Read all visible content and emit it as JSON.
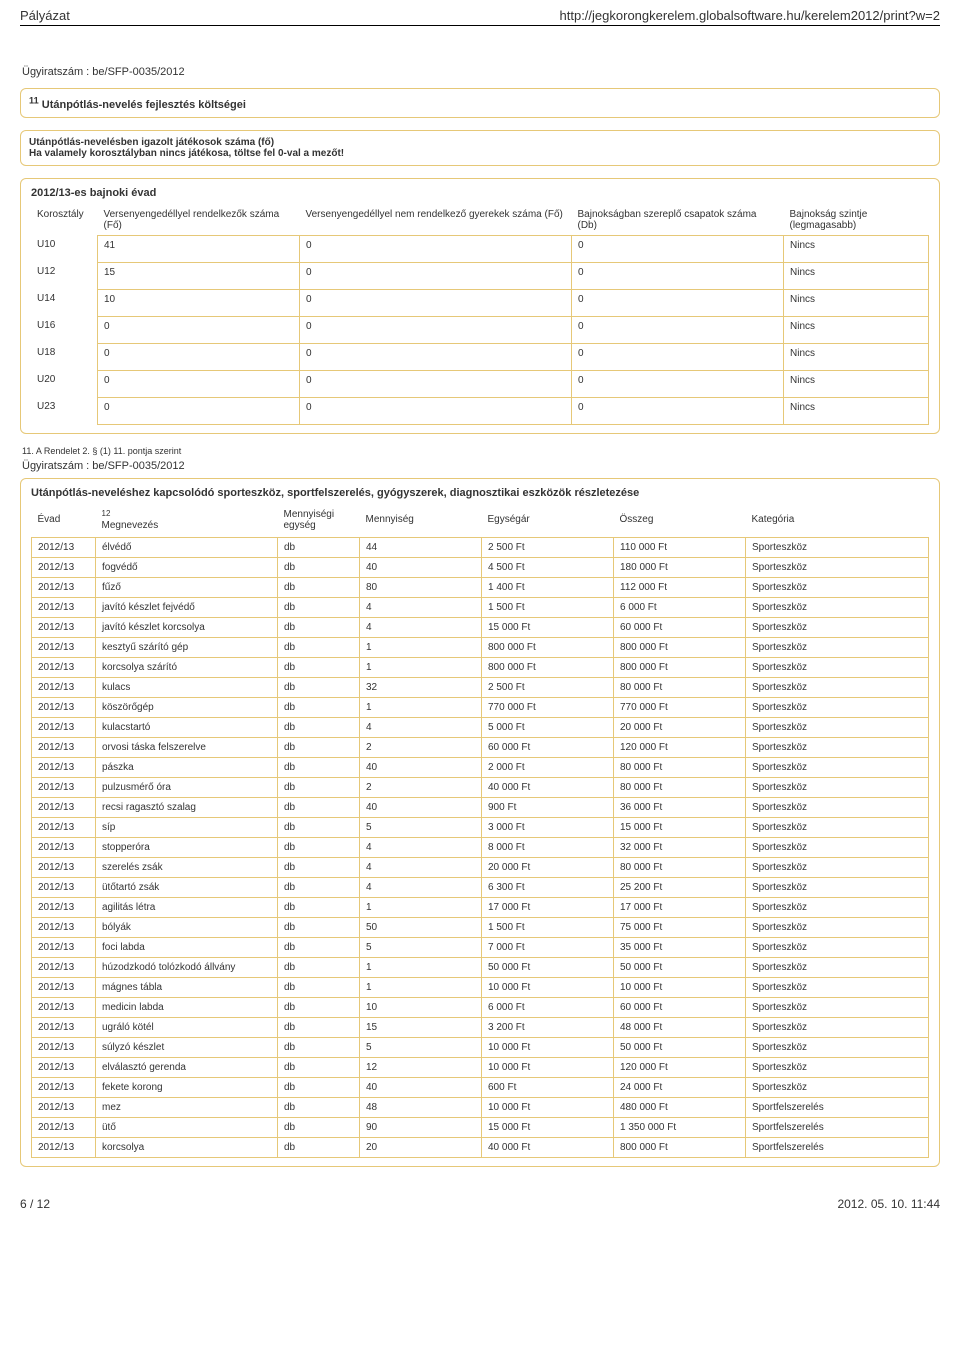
{
  "header": {
    "left": "Pályázat",
    "right": "http://jegkorongkerelem.globalsoftware.hu/kerelem2012/print?w=2"
  },
  "case_number_label": "Ügyiratszám : be/SFP-0035/2012",
  "block1": {
    "sup": "11",
    "title": "Utánpótlás-nevelés fejlesztés költségei"
  },
  "block2": {
    "line1": "Utánpótlás-nevelésben igazolt játékosok száma (fő)",
    "line2": "Ha valamely korosztályban nincs játékosa, töltse fel 0-val a mezőt!"
  },
  "age_table": {
    "title": "2012/13-es bajnoki évad",
    "headers": {
      "c1": "Korosztály",
      "c2": "Versenyengedéllyel rendelkezők száma (Fő)",
      "c3": "Versenyengedéllyel nem rendelkező gyerekek száma (Fő)",
      "c4": "Bajnokságban szereplő csapatok száma (Db)",
      "c5": "Bajnokság szintje (legmagasabb)"
    },
    "rows": [
      {
        "age": "U10",
        "a": "41",
        "b": "0",
        "c": "0",
        "d": "Nincs"
      },
      {
        "age": "U12",
        "a": "15",
        "b": "0",
        "c": "0",
        "d": "Nincs"
      },
      {
        "age": "U14",
        "a": "10",
        "b": "0",
        "c": "0",
        "d": "Nincs"
      },
      {
        "age": "U16",
        "a": "0",
        "b": "0",
        "c": "0",
        "d": "Nincs"
      },
      {
        "age": "U18",
        "a": "0",
        "b": "0",
        "c": "0",
        "d": "Nincs"
      },
      {
        "age": "U20",
        "a": "0",
        "b": "0",
        "c": "0",
        "d": "Nincs"
      },
      {
        "age": "U23",
        "a": "0",
        "b": "0",
        "c": "0",
        "d": "Nincs"
      }
    ]
  },
  "footnote11": "11. A Rendelet 2. § (1) 11. pontja szerint",
  "equip_block": {
    "title": "Utánpótlás-neveléshez kapcsolódó sporteszköz, sportfelszerelés, gyógyszerek, diagnosztikai eszközök részletezése",
    "headers": {
      "evad": "Évad",
      "name_sup": "12",
      "name": "Megnevezés",
      "unit": "Mennyiségi egység",
      "qty": "Mennyiség",
      "price": "Egységár",
      "sum": "Összeg",
      "cat": "Kategória"
    },
    "rows": [
      {
        "e": "2012/13",
        "n": "élvédő",
        "u": "db",
        "q": "44",
        "p": "2 500 Ft",
        "s": "110 000  Ft",
        "c": "Sporteszköz"
      },
      {
        "e": "2012/13",
        "n": "fogvédő",
        "u": "db",
        "q": "40",
        "p": "4 500 Ft",
        "s": "180 000  Ft",
        "c": "Sporteszköz"
      },
      {
        "e": "2012/13",
        "n": "fűző",
        "u": "db",
        "q": "80",
        "p": "1 400 Ft",
        "s": "112 000  Ft",
        "c": "Sporteszköz"
      },
      {
        "e": "2012/13",
        "n": "javító készlet fejvédő",
        "u": "db",
        "q": "4",
        "p": "1 500 Ft",
        "s": "6 000  Ft",
        "c": "Sporteszköz"
      },
      {
        "e": "2012/13",
        "n": "javító készlet korcsolya",
        "u": "db",
        "q": "4",
        "p": "15 000 Ft",
        "s": "60 000  Ft",
        "c": "Sporteszköz"
      },
      {
        "e": "2012/13",
        "n": "kesztyű szárító gép",
        "u": "db",
        "q": "1",
        "p": "800 000 Ft",
        "s": "800 000  Ft",
        "c": "Sporteszköz"
      },
      {
        "e": "2012/13",
        "n": "korcsolya szárító",
        "u": "db",
        "q": "1",
        "p": "800 000 Ft",
        "s": "800 000  Ft",
        "c": "Sporteszköz"
      },
      {
        "e": "2012/13",
        "n": "kulacs",
        "u": "db",
        "q": "32",
        "p": "2 500 Ft",
        "s": "80 000  Ft",
        "c": "Sporteszköz"
      },
      {
        "e": "2012/13",
        "n": "köszörőgép",
        "u": "db",
        "q": "1",
        "p": "770 000 Ft",
        "s": "770 000  Ft",
        "c": "Sporteszköz"
      },
      {
        "e": "2012/13",
        "n": "kulacstartó",
        "u": "db",
        "q": "4",
        "p": "5 000 Ft",
        "s": "20 000  Ft",
        "c": "Sporteszköz"
      },
      {
        "e": "2012/13",
        "n": "orvosi táska felszerelve",
        "u": "db",
        "q": "2",
        "p": "60 000 Ft",
        "s": "120 000  Ft",
        "c": "Sporteszköz"
      },
      {
        "e": "2012/13",
        "n": "pászka",
        "u": "db",
        "q": "40",
        "p": "2 000 Ft",
        "s": "80 000  Ft",
        "c": "Sporteszköz"
      },
      {
        "e": "2012/13",
        "n": "pulzusmérő óra",
        "u": "db",
        "q": "2",
        "p": "40 000 Ft",
        "s": "80 000  Ft",
        "c": "Sporteszköz"
      },
      {
        "e": "2012/13",
        "n": "recsi ragasztó szalag",
        "u": "db",
        "q": "40",
        "p": "900 Ft",
        "s": "36 000  Ft",
        "c": "Sporteszköz"
      },
      {
        "e": "2012/13",
        "n": "síp",
        "u": "db",
        "q": "5",
        "p": "3 000 Ft",
        "s": "15 000  Ft",
        "c": "Sporteszköz"
      },
      {
        "e": "2012/13",
        "n": "stopperóra",
        "u": "db",
        "q": "4",
        "p": "8 000 Ft",
        "s": "32 000  Ft",
        "c": "Sporteszköz"
      },
      {
        "e": "2012/13",
        "n": "szerelés zsák",
        "u": "db",
        "q": "4",
        "p": "20 000 Ft",
        "s": "80 000  Ft",
        "c": "Sporteszköz"
      },
      {
        "e": "2012/13",
        "n": "ütőtartó zsák",
        "u": "db",
        "q": "4",
        "p": "6 300 Ft",
        "s": "25 200  Ft",
        "c": "Sporteszköz"
      },
      {
        "e": "2012/13",
        "n": "agilitás létra",
        "u": "db",
        "q": "1",
        "p": "17 000 Ft",
        "s": "17 000  Ft",
        "c": "Sporteszköz"
      },
      {
        "e": "2012/13",
        "n": "bólyák",
        "u": "db",
        "q": "50",
        "p": "1 500 Ft",
        "s": "75 000  Ft",
        "c": "Sporteszköz"
      },
      {
        "e": "2012/13",
        "n": "foci labda",
        "u": "db",
        "q": "5",
        "p": "7 000 Ft",
        "s": "35 000  Ft",
        "c": "Sporteszköz"
      },
      {
        "e": "2012/13",
        "n": "húzodzkodó tolózkodó állvány",
        "u": "db",
        "q": "1",
        "p": "50 000 Ft",
        "s": "50 000  Ft",
        "c": "Sporteszköz"
      },
      {
        "e": "2012/13",
        "n": "mágnes tábla",
        "u": "db",
        "q": "1",
        "p": "10 000 Ft",
        "s": "10 000  Ft",
        "c": "Sporteszköz"
      },
      {
        "e": "2012/13",
        "n": "medicin labda",
        "u": "db",
        "q": "10",
        "p": "6 000 Ft",
        "s": "60 000  Ft",
        "c": "Sporteszköz"
      },
      {
        "e": "2012/13",
        "n": "ugráló kötél",
        "u": "db",
        "q": "15",
        "p": "3 200 Ft",
        "s": "48 000  Ft",
        "c": "Sporteszköz"
      },
      {
        "e": "2012/13",
        "n": "súlyzó készlet",
        "u": "db",
        "q": "5",
        "p": "10 000 Ft",
        "s": "50 000  Ft",
        "c": "Sporteszköz"
      },
      {
        "e": "2012/13",
        "n": "elválasztó gerenda",
        "u": "db",
        "q": "12",
        "p": "10 000 Ft",
        "s": "120 000  Ft",
        "c": "Sporteszköz"
      },
      {
        "e": "2012/13",
        "n": "fekete korong",
        "u": "db",
        "q": "40",
        "p": "600 Ft",
        "s": "24 000  Ft",
        "c": "Sporteszköz"
      },
      {
        "e": "2012/13",
        "n": "mez",
        "u": "db",
        "q": "48",
        "p": "10 000 Ft",
        "s": "480 000  Ft",
        "c": "Sportfelszerelés"
      },
      {
        "e": "2012/13",
        "n": "ütő",
        "u": "db",
        "q": "90",
        "p": "15 000 Ft",
        "s": "1 350 000  Ft",
        "c": "Sportfelszerelés"
      },
      {
        "e": "2012/13",
        "n": "korcsolya",
        "u": "db",
        "q": "20",
        "p": "40 000 Ft",
        "s": "800 000  Ft",
        "c": "Sportfelszerelés"
      }
    ]
  },
  "footer": {
    "left": "6 / 12",
    "right": "2012. 05. 10. 11:44"
  }
}
